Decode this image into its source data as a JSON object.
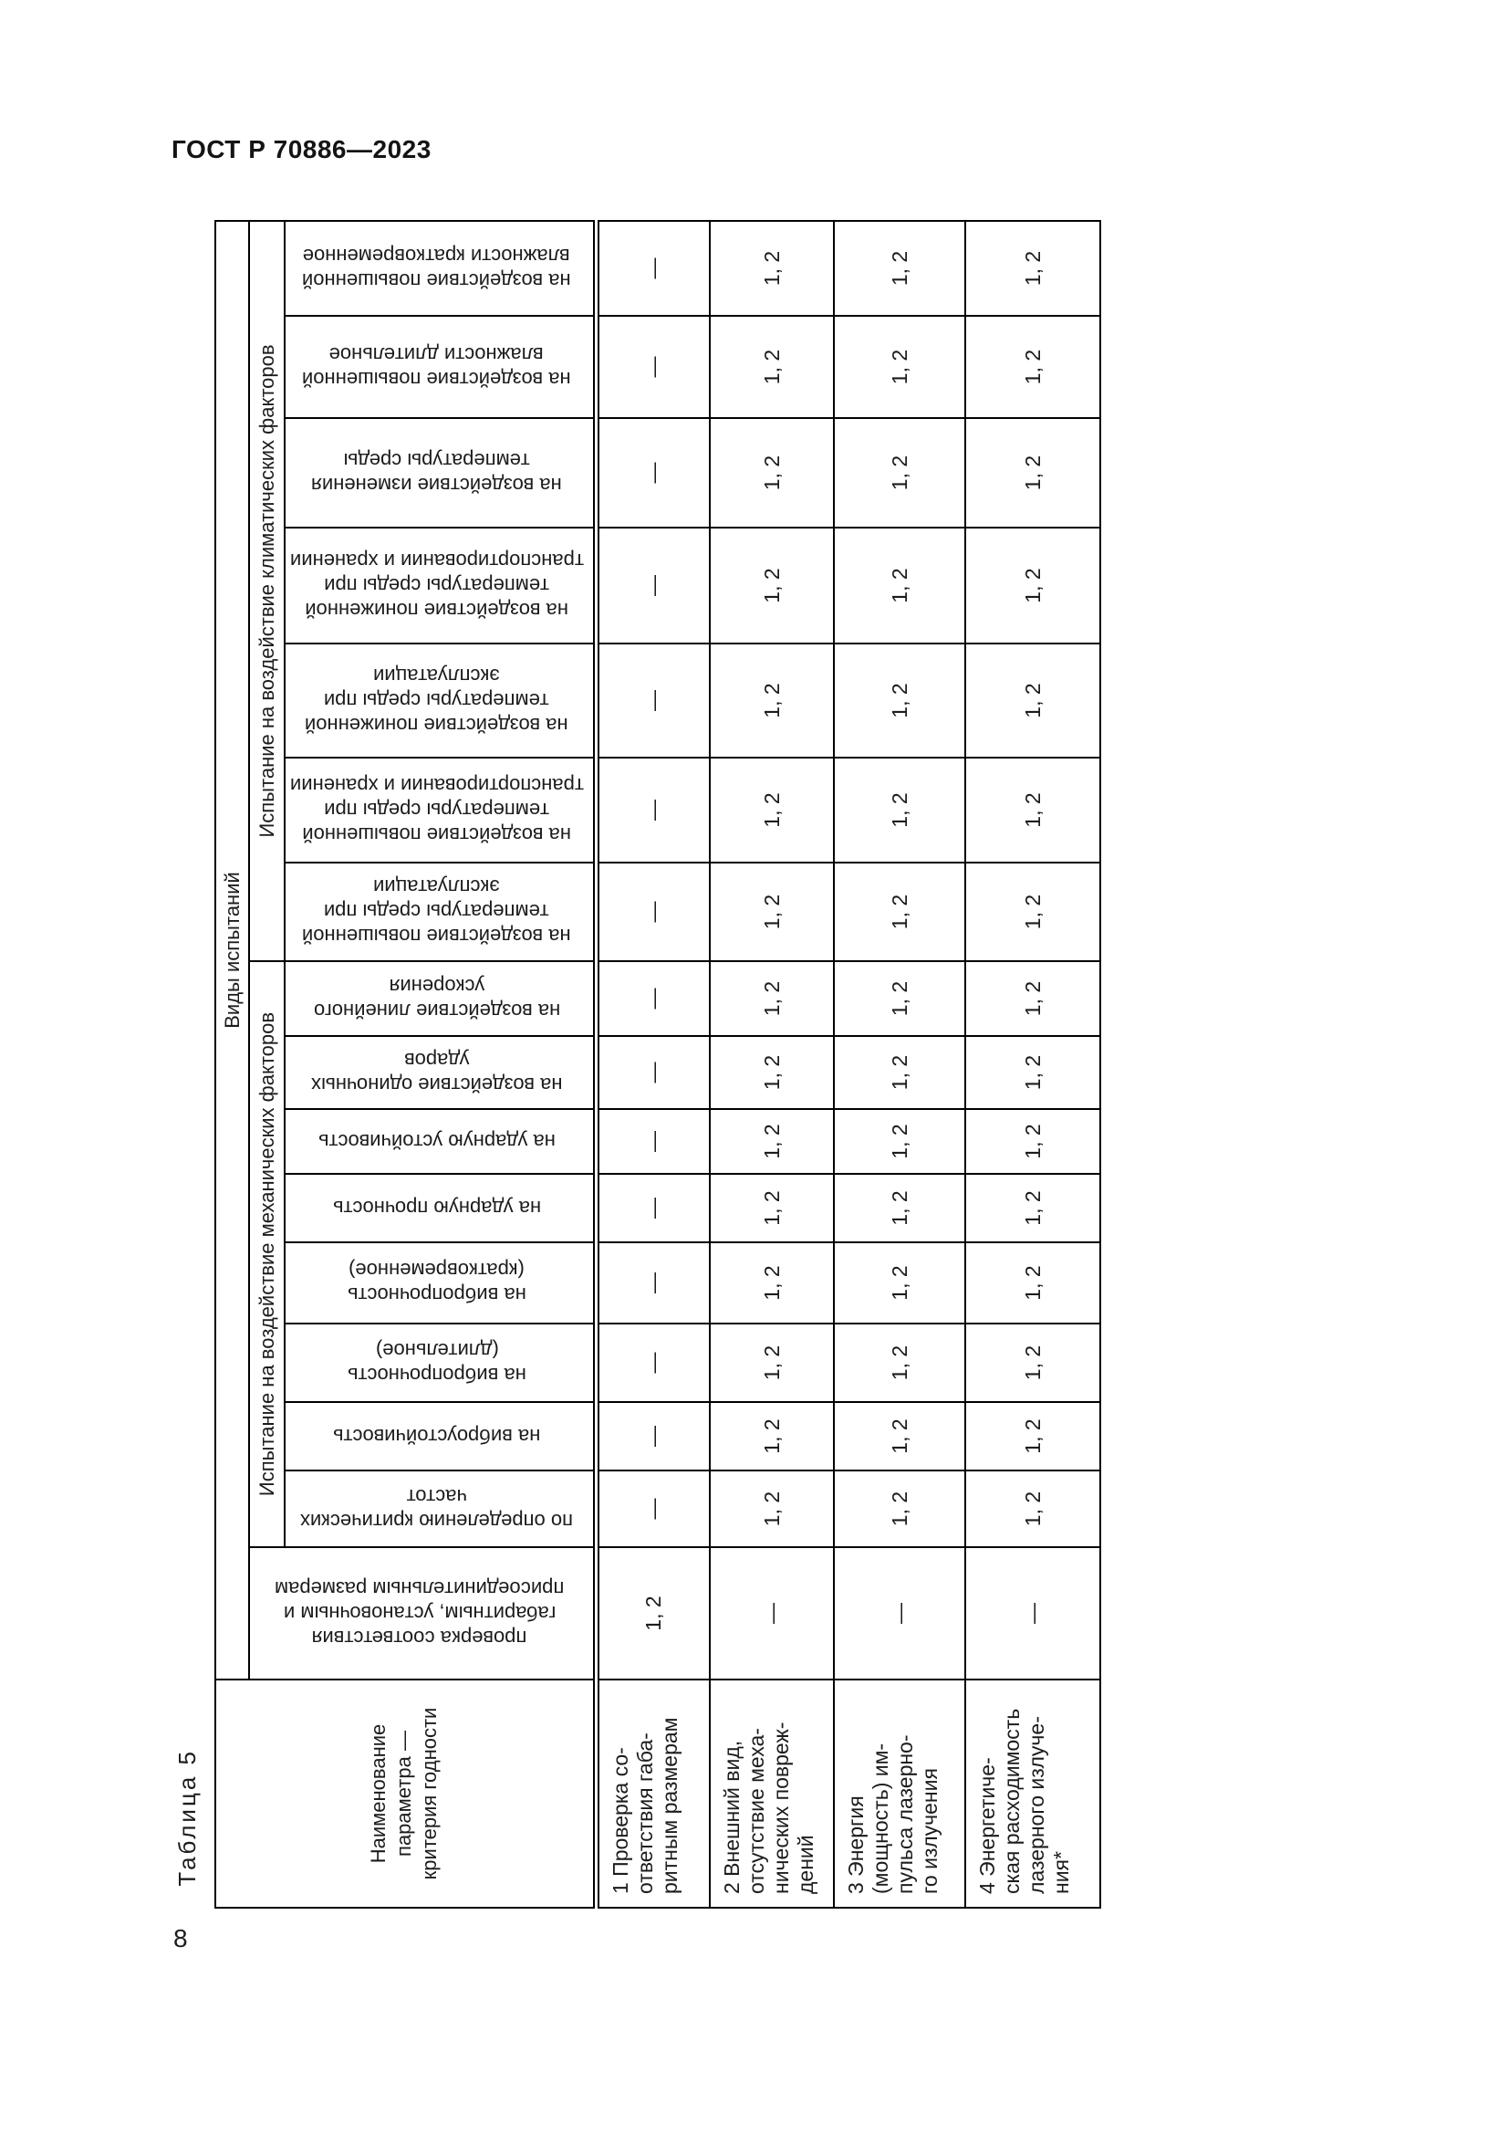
{
  "page": {
    "header_code": "ГОСТ Р 70886—2023",
    "page_number": "8",
    "table_caption": "Таблица 5"
  },
  "table": {
    "corner_header": "Наименование\nпараметра —\nкритерия годности",
    "top_header": "Виды испытаний",
    "check_column_header": "проверка соответствия\nгабаритным, установочным и\nприсоединительным размерам",
    "groups": [
      {
        "label": "Испытание на воздействие механических факторов",
        "span": 8
      },
      {
        "label": "Испытание на воздействие климатических факторов",
        "span": 7
      }
    ],
    "test_columns": [
      "по определению критических\nчастот",
      "на виброустойчивость",
      "на вибропрочность\n(длительное)",
      "на вибропрочность\n(кратковременное)",
      "на ударную прочность",
      "на ударную устойчивость",
      "на воздействие одиночных\nударов",
      "на воздействие линейного\nускорения",
      "на воздействие повышенной\nтемпературы среды при\nэксплуатации",
      "на воздействие повышенной\nтемпературы среды при\nтранспортировании и хранении",
      "на воздействие пониженной\nтемпературы среды при\nэксплуатации",
      "на воздействие пониженной\nтемпературы среды при\nтранспортировании и хранении",
      "на воздействие изменения\nтемпературы среды",
      "на воздействие повышенной\nвлажности длительное",
      "на воздействие повышенной\nвлажности кратковременное"
    ],
    "rows": [
      {
        "label": "1 Проверка со-\nответствия габа-\nритным размерам",
        "cells": [
          "1, 2",
          "—",
          "—",
          "—",
          "—",
          "—",
          "—",
          "—",
          "—",
          "—",
          "—",
          "—",
          "—",
          "—",
          "—",
          "—"
        ]
      },
      {
        "label": "2 Внешний вид,\nотсутствие меха-\nнических повреж-\nдений",
        "cells": [
          "—",
          "1, 2",
          "1, 2",
          "1, 2",
          "1, 2",
          "1, 2",
          "1, 2",
          "1, 2",
          "1, 2",
          "1, 2",
          "1, 2",
          "1, 2",
          "1, 2",
          "1, 2",
          "1, 2",
          "1, 2"
        ]
      },
      {
        "label": "3 Энергия\n(мощность) им-\nпульса лазерно-\nго излучения",
        "cells": [
          "—",
          "1, 2",
          "1, 2",
          "1, 2",
          "1, 2",
          "1, 2",
          "1, 2",
          "1, 2",
          "1, 2",
          "1, 2",
          "1, 2",
          "1, 2",
          "1, 2",
          "1, 2",
          "1, 2",
          "1, 2"
        ]
      },
      {
        "label": "4 Энергетиче-\nская расходимость\nлазерного излуче-\nния*",
        "cells": [
          "—",
          "1, 2",
          "1, 2",
          "1, 2",
          "1, 2",
          "1, 2",
          "1, 2",
          "1, 2",
          "1, 2",
          "1, 2",
          "1, 2",
          "1, 2",
          "1, 2",
          "1, 2",
          "1, 2",
          "1, 2"
        ]
      }
    ]
  }
}
